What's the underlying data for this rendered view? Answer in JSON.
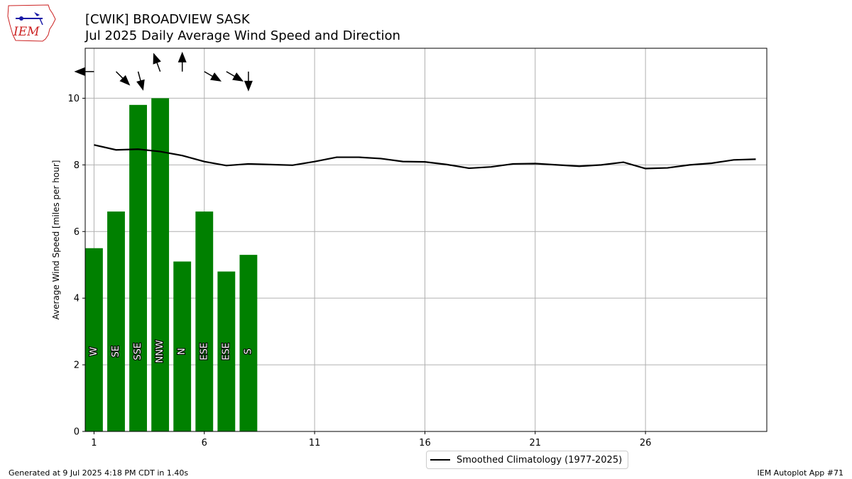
{
  "header": {
    "title_line1": "[CWIK] BROADVIEW  SASK",
    "title_line2": "Jul 2025 Daily Average Wind Speed and Direction"
  },
  "logo": {
    "text": "IEM",
    "icon": "iowa-state-outline-logo"
  },
  "footer": {
    "left": "Generated at 9 Jul 2025 4:18 PM CDT in 1.40s",
    "right": "IEM Autoplot App #71"
  },
  "legend": {
    "label": "Smoothed Climatology (1977-2025)"
  },
  "colors": {
    "bar": "#008000",
    "climatology": "#000000",
    "grid": "#b0b0b0",
    "logo_red": "#cc2222",
    "logo_blue": "#1a1aa6"
  },
  "chart_data": {
    "type": "bar",
    "ylabel": "Average Wind Speed [miles per hour]",
    "xlim": [
      0.6,
      31.5
    ],
    "ylim": [
      0,
      11.5
    ],
    "xticks": [
      1,
      6,
      11,
      16,
      21,
      26
    ],
    "yticks": [
      0,
      2,
      4,
      6,
      8,
      10
    ],
    "grid": true,
    "legend_position": "bottom-center",
    "bars": {
      "days": [
        1,
        2,
        3,
        4,
        5,
        6,
        7,
        8
      ],
      "values": [
        5.5,
        6.6,
        9.8,
        10.0,
        5.1,
        6.6,
        4.8,
        5.3
      ],
      "direction_labels": [
        "W",
        "SE",
        "SSE",
        "NNW",
        "N",
        "ESE",
        "ESE",
        "S"
      ],
      "arrow_direction_deg": [
        270,
        135,
        165,
        340,
        0,
        120,
        120,
        180
      ]
    },
    "climatology": {
      "name": "Smoothed Climatology (1977-2025)",
      "days": [
        1,
        2,
        3,
        4,
        5,
        6,
        7,
        8,
        9,
        10,
        11,
        12,
        13,
        14,
        15,
        16,
        17,
        18,
        19,
        20,
        21,
        22,
        23,
        24,
        25,
        26,
        27,
        28,
        29,
        30,
        31
      ],
      "values": [
        8.6,
        8.45,
        8.47,
        8.4,
        8.28,
        8.1,
        7.98,
        8.03,
        8.01,
        7.99,
        8.1,
        8.23,
        8.23,
        8.19,
        8.1,
        8.09,
        8.01,
        7.9,
        7.94,
        8.03,
        8.04,
        8.0,
        7.96,
        8.0,
        8.08,
        7.89,
        7.91,
        8.0,
        8.05,
        8.15,
        8.17
      ]
    }
  }
}
